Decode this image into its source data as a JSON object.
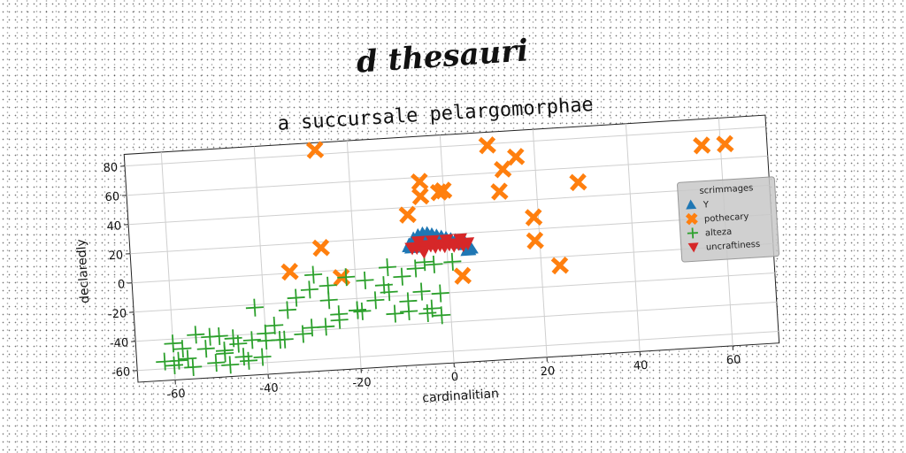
{
  "suptitle": "d thesauri",
  "chart_data": {
    "type": "scatter",
    "title": "a succursale pelargomorphae",
    "xlabel": "cardinalitian",
    "ylabel": "declaredly",
    "xlim": [
      -68,
      70
    ],
    "ylim": [
      -68,
      88
    ],
    "xticks": [
      "-60",
      "-40",
      "-20",
      "0",
      "20",
      "40",
      "60"
    ],
    "xtick_values": [
      -60,
      -40,
      -20,
      0,
      20,
      40,
      60
    ],
    "yticks": [
      "-60",
      "-40",
      "-20",
      "0",
      "20",
      "40",
      "60",
      "80"
    ],
    "ytick_values": [
      -60,
      -40,
      -20,
      0,
      20,
      40,
      60,
      80
    ],
    "grid": true,
    "legend": {
      "title": "scrimmages",
      "position": "right"
    },
    "series": [
      {
        "name": "Y",
        "marker": "triangle-up",
        "color": "#1f77b4",
        "x": [
          -8.0,
          -7.0,
          -6.0,
          -5.0,
          -4.0,
          -3.0,
          -2.0,
          -1.0,
          0.0,
          1.0,
          2.0,
          3.0,
          4.0,
          5.0,
          -7.5,
          4.5
        ],
        "y": [
          14,
          18,
          20,
          21,
          21,
          20,
          19,
          18,
          17,
          16,
          15,
          14,
          13,
          10,
          13,
          9
        ]
      },
      {
        "name": "pothecary",
        "marker": "x",
        "color": "#ff7f0e",
        "x": [
          -27,
          10,
          13,
          16,
          56,
          61,
          -5,
          0,
          12,
          29,
          -8,
          19,
          -27,
          -34,
          -23,
          19,
          3,
          24,
          -1,
          -5
        ],
        "y": [
          83,
          79,
          62,
          70,
          70,
          70,
          57,
          50,
          47,
          50,
          35,
          28,
          16,
          1,
          -5,
          12,
          -9,
          -6,
          49,
          47
        ]
      },
      {
        "name": "alteza",
        "marker": "plus",
        "color": "#2ca02c",
        "x": [
          -59,
          -56,
          -51,
          -49,
          -46,
          -40,
          -38,
          -35,
          -33,
          -30,
          -26,
          -22,
          -18,
          -14,
          -10,
          -7,
          -5,
          -3,
          1,
          -60,
          -55,
          -50,
          -47,
          -43,
          -40,
          -36,
          -32,
          -24,
          -20,
          -16,
          -13,
          -9,
          -6,
          -2,
          -58,
          -53,
          -49,
          -45,
          -41,
          -37,
          -30,
          -27,
          -24,
          -19,
          -12,
          -9,
          -5,
          -62,
          -60,
          -57,
          -52,
          -48,
          -44,
          -42,
          -29,
          -13,
          -4,
          -2,
          -20,
          -26
        ],
        "y": [
          -55,
          -60,
          -58,
          -52,
          -46,
          -40,
          -35,
          -25,
          -17,
          -12,
          -10,
          -5,
          -8,
          -12,
          -7,
          -2,
          2,
          0,
          1,
          -43,
          -38,
          -40,
          -42,
          -44,
          -45,
          -45,
          -42,
          -30,
          -28,
          -22,
          -17,
          -24,
          -18,
          -20,
          -47,
          -48,
          -50,
          -55,
          -56,
          -45,
          -38,
          -38,
          -34,
          -29,
          -32,
          -31,
          -33,
          -55,
          -58,
          -54,
          -40,
          -60,
          -58,
          -22,
          -2,
          0,
          -30,
          -35,
          -28,
          -20
        ]
      },
      {
        "name": "uncraftiness",
        "marker": "triangle-down",
        "color": "#d62728",
        "x": [
          -7.5,
          -6.5,
          -5.5,
          -4.5,
          -3.5,
          -2.5,
          -1.5,
          -0.5,
          0.5,
          1.5,
          2.5,
          3.5,
          4.5,
          -6.0,
          -3.0,
          0.0,
          3.0,
          -5.0
        ],
        "y": [
          12,
          12,
          13,
          12,
          13,
          12,
          13,
          12,
          13,
          12,
          13,
          12,
          13,
          16,
          16,
          16,
          16,
          9
        ]
      }
    ]
  }
}
